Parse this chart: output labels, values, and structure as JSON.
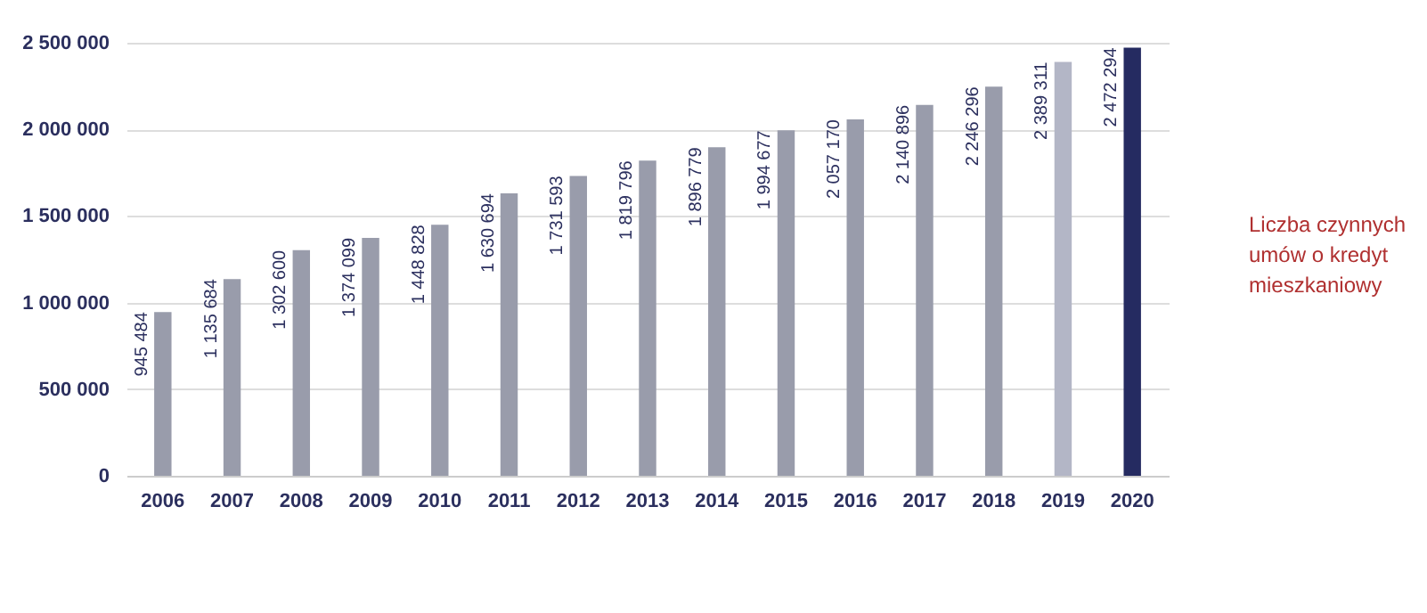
{
  "chart_data": {
    "type": "bar",
    "categories": [
      "2006",
      "2007",
      "2008",
      "2009",
      "2010",
      "2011",
      "2012",
      "2013",
      "2014",
      "2015",
      "2016",
      "2017",
      "2018",
      "2019",
      "2020"
    ],
    "values": [
      945484,
      1135684,
      1302600,
      1374099,
      1448828,
      1630694,
      1731593,
      1819796,
      1896779,
      1994677,
      2057170,
      2140896,
      2246296,
      2389311,
      2472294
    ],
    "value_labels": [
      "945 484",
      "1 135 684",
      "1 302 600",
      "1 374 099",
      "1 448 828",
      "1 630 694",
      "1 731 593",
      "1 819 796",
      "1 896 779",
      "1 994 677",
      "2 057 170",
      "2 140 896",
      "2 246 296",
      "2 389 311",
      "2 472 294"
    ],
    "colors": [
      "#999cab",
      "#999cab",
      "#999cab",
      "#999cab",
      "#999cab",
      "#999cab",
      "#999cab",
      "#999cab",
      "#999cab",
      "#999cab",
      "#999cab",
      "#999cab",
      "#999cab",
      "#b3b6c6",
      "#252b61"
    ],
    "ylim": [
      0,
      2500000
    ],
    "yticks": [
      0,
      {
        "value": 500000,
        "label": "500 000"
      },
      {
        "value": 1000000,
        "label": "1 000 000"
      },
      {
        "value": 1500000,
        "label": "1 500 000"
      },
      {
        "value": 2000000,
        "label": "2 000 000"
      },
      {
        "value": 2500000,
        "label": "2 500 000"
      }
    ],
    "grid": "y",
    "annotations": [
      "Liczba czynnych umów o kredyt mieszkaniowy"
    ]
  }
}
